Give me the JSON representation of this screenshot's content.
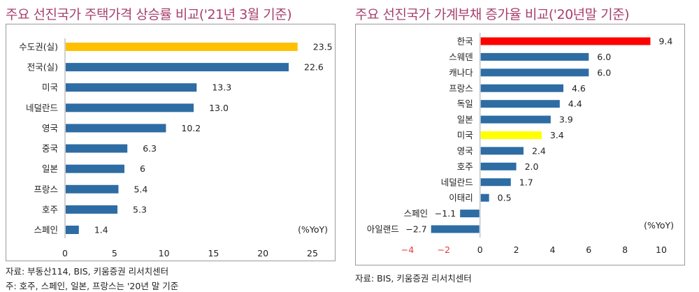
{
  "chart_data": [
    {
      "type": "bar",
      "orientation": "horizontal",
      "title": "주요 선진국가 주택가격 상승률 비교('21년 3월 기준)",
      "unit_label": "(%YoY)",
      "categories": [
        "수도권(실)",
        "전국(실)",
        "미국",
        "네덜란드",
        "영국",
        "중국",
        "일본",
        "프랑스",
        "호주",
        "스페인"
      ],
      "values": [
        23.5,
        22.6,
        13.3,
        13.0,
        10.2,
        6.3,
        6,
        5.4,
        5.3,
        1.4
      ],
      "value_labels": [
        "23.5",
        "22.6",
        "13.3",
        "13.0",
        "10.2",
        "6.3",
        "6",
        "5.4",
        "5.3",
        "1.4"
      ],
      "colors": [
        "#ffc000",
        "#2e6ca4",
        "#2e6ca4",
        "#2e6ca4",
        "#2e6ca4",
        "#2e6ca4",
        "#2e6ca4",
        "#2e6ca4",
        "#2e6ca4",
        "#2e6ca4"
      ],
      "xlim": [
        0,
        25
      ],
      "xticks": [
        "0",
        "5",
        "10",
        "15",
        "20",
        "25"
      ],
      "xtick_values": [
        0,
        5,
        10,
        15,
        20,
        25
      ],
      "notes": [
        "자료: 부동산114, BIS, 키움증권 리서치센터",
        "주: 호주, 스페인, 일본, 프랑스는 '20년 말 기준"
      ]
    },
    {
      "type": "bar",
      "orientation": "horizontal",
      "title": "주요 선진국가 가계부채 증가율 비교('20년말 기준)",
      "unit_label": "(%YoY)",
      "categories": [
        "한국",
        "스웨덴",
        "캐나다",
        "프랑스",
        "독일",
        "일본",
        "미국",
        "영국",
        "호주",
        "네덜란드",
        "이태리",
        "스페인",
        "아일랜드"
      ],
      "values": [
        9.4,
        6.0,
        6.0,
        4.6,
        4.4,
        3.9,
        3.4,
        2.4,
        2.0,
        1.7,
        0.5,
        -1.1,
        -2.7
      ],
      "value_labels": [
        "9.4",
        "6.0",
        "6.0",
        "4.6",
        "4.4",
        "3.9",
        "3.4",
        "2.4",
        "2.0",
        "1.7",
        "0.5",
        "−1.1",
        "−2.7"
      ],
      "colors": [
        "#ff0000",
        "#2e6ca4",
        "#2e6ca4",
        "#2e6ca4",
        "#2e6ca4",
        "#2e6ca4",
        "#ffff00",
        "#2e6ca4",
        "#2e6ca4",
        "#2e6ca4",
        "#2e6ca4",
        "#2e6ca4",
        "#2e6ca4"
      ],
      "xlim": [
        -4,
        10
      ],
      "xticks": [
        "−4",
        "−2",
        "0",
        "2",
        "4",
        "6",
        "8",
        "10"
      ],
      "xtick_values": [
        -4,
        -2,
        0,
        2,
        4,
        6,
        8,
        10
      ],
      "negative_tick_color": "#e8383d",
      "notes": [
        "자료: BIS, 키움증권 리서치센터"
      ]
    }
  ]
}
